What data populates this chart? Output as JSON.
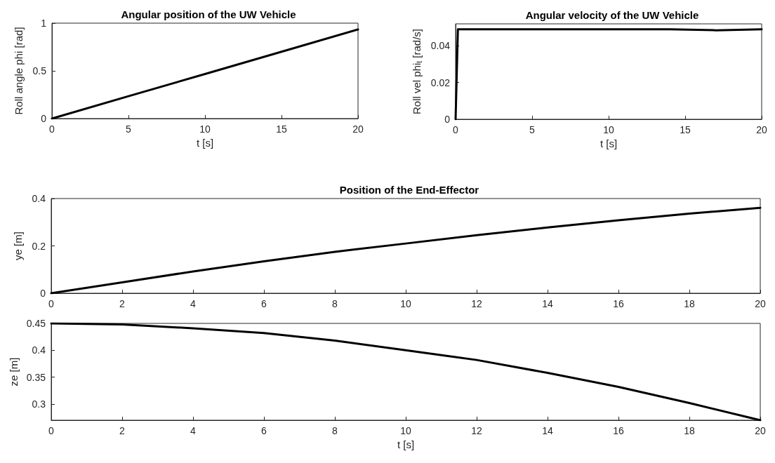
{
  "chart_data": [
    {
      "type": "line",
      "title": "Angular position of the UW Vehicle",
      "xlabel": "t [s]",
      "ylabel": "Roll angle phi [rad]",
      "xlim": [
        0,
        20
      ],
      "xticks": [
        0,
        5,
        10,
        15,
        20
      ],
      "ylim": [
        0,
        1
      ],
      "yticks": [
        0,
        0.5,
        1
      ],
      "grid": false,
      "marker": "none",
      "line_style": "solid",
      "series": [
        {
          "color": "#000000",
          "x": [
            0,
            5,
            10,
            15,
            20
          ],
          "values": [
            0,
            0.234,
            0.467,
            0.7,
            0.934
          ]
        }
      ]
    },
    {
      "type": "line",
      "title": "Angular velocity of the UW Vehicle",
      "xlabel": "t [s]",
      "ylabel": "Roll vel phi$_{t}$ [rad/s]",
      "xlim": [
        0,
        20
      ],
      "xticks": [
        0,
        5,
        10,
        15,
        20
      ],
      "ylim": [
        0,
        0.052
      ],
      "yticks": [
        0,
        0.02,
        0.04
      ],
      "grid": false,
      "marker": "none",
      "line_style": "solid",
      "series": [
        {
          "color": "#000000",
          "x": [
            0,
            0.15,
            3,
            6,
            10,
            14,
            17,
            20
          ],
          "values": [
            0,
            0.049,
            0.049,
            0.049,
            0.049,
            0.049,
            0.0485,
            0.049
          ]
        }
      ]
    },
    {
      "type": "line",
      "title": "Position of the End-Effector",
      "ylabel": "ye [m]",
      "xlim": [
        0,
        20
      ],
      "xticks": [
        0,
        2,
        4,
        6,
        8,
        10,
        12,
        14,
        16,
        18,
        20
      ],
      "ylim": [
        0,
        0.4
      ],
      "yticks": [
        0,
        0.2,
        0.4
      ],
      "grid": false,
      "marker": "none",
      "line_style": "solid",
      "series": [
        {
          "color": "#000000",
          "x": [
            0,
            2,
            4,
            6,
            8,
            10,
            12,
            14,
            16,
            18,
            20
          ],
          "values": [
            0,
            0.046,
            0.092,
            0.135,
            0.175,
            0.21,
            0.245,
            0.278,
            0.308,
            0.336,
            0.361
          ]
        }
      ]
    },
    {
      "type": "line",
      "xlabel": "t [s]",
      "ylabel": "ze [m]",
      "xlim": [
        0,
        20
      ],
      "xticks": [
        0,
        2,
        4,
        6,
        8,
        10,
        12,
        14,
        16,
        18,
        20
      ],
      "ylim": [
        0.27,
        0.45
      ],
      "yticks": [
        0.3,
        0.35,
        0.4,
        0.45
      ],
      "grid": false,
      "marker": "none",
      "line_style": "solid",
      "series": [
        {
          "color": "#000000",
          "x": [
            0,
            2,
            4,
            6,
            8,
            10,
            12,
            14,
            16,
            18,
            20
          ],
          "values": [
            0.45,
            0.448,
            0.441,
            0.432,
            0.418,
            0.4,
            0.382,
            0.358,
            0.332,
            0.302,
            0.27
          ]
        }
      ]
    }
  ]
}
